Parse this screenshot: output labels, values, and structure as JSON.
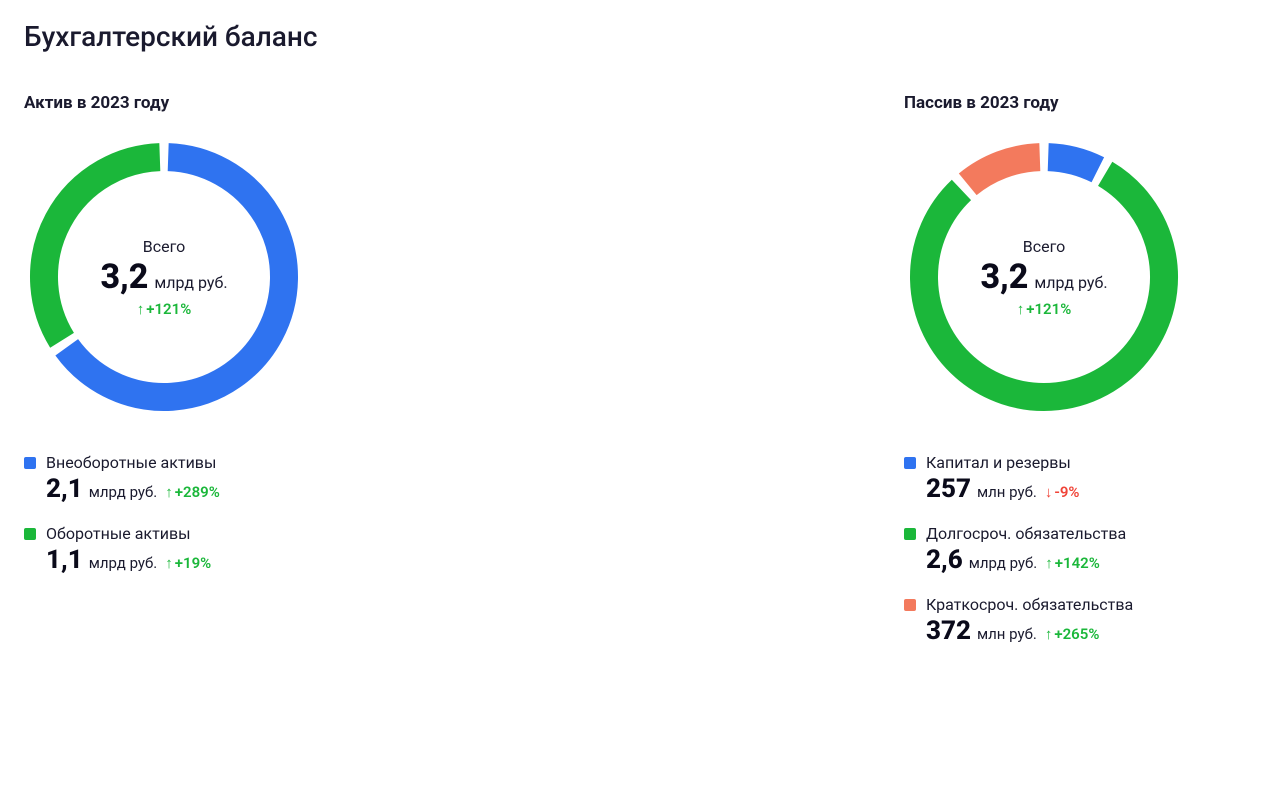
{
  "title": "Бухгалтерский баланс",
  "colors": {
    "up": "#1bb73a",
    "down": "#f04438",
    "text": "#1a1a2e"
  },
  "donut": {
    "size": 280,
    "radius": 120,
    "stroke": 28,
    "gap_deg": 4,
    "start_angle_deg": -90,
    "bg": "#ffffff"
  },
  "panels": [
    {
      "id": "assets",
      "title": "Актив в 2023 году",
      "center": {
        "label": "Всего",
        "value": "3,2",
        "unit": "млрд руб.",
        "change": "+121%",
        "change_dir": "up"
      },
      "series": [
        {
          "label": "Внеоборотные активы",
          "value": "2,1",
          "unit": "млрд руб.",
          "change": "+289%",
          "change_dir": "up",
          "color": "#2f73f0",
          "fraction": 0.656
        },
        {
          "label": "Оборотные активы",
          "value": "1,1",
          "unit": "млрд руб.",
          "change": "+19%",
          "change_dir": "up",
          "color": "#1bb73a",
          "fraction": 0.344
        }
      ]
    },
    {
      "id": "liabilities",
      "title": "Пассив в 2023 году",
      "center": {
        "label": "Всего",
        "value": "3,2",
        "unit": "млрд руб.",
        "change": "+121%",
        "change_dir": "up"
      },
      "series": [
        {
          "label": "Капитал и резервы",
          "value": "257",
          "unit": "млн руб.",
          "change": "-9%",
          "change_dir": "down",
          "color": "#2f73f0",
          "fraction": 0.0796
        },
        {
          "label": "Долгосроч. обязательства",
          "value": "2,6",
          "unit": "млрд руб.",
          "change": "+142%",
          "change_dir": "up",
          "color": "#1bb73a",
          "fraction": 0.8052
        },
        {
          "label": "Краткосроч. обязательства",
          "value": "372",
          "unit": "млн руб.",
          "change": "+265%",
          "change_dir": "up",
          "color": "#f37a5d",
          "fraction": 0.1152
        }
      ]
    }
  ]
}
